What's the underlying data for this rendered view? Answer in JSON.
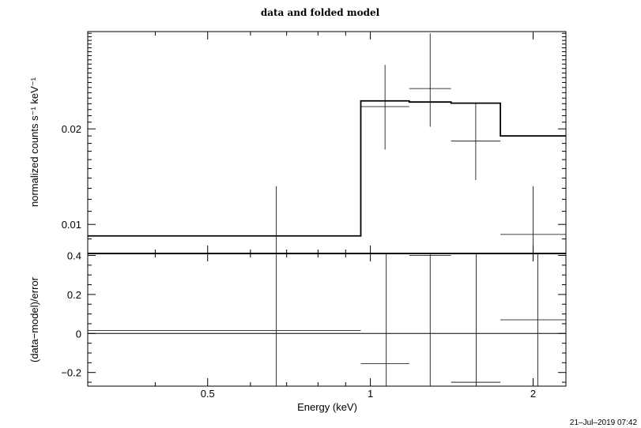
{
  "chart_data": [
    {
      "type": "line",
      "title": "data and folded model",
      "ylabel": "normalized counts s⁻¹ keV⁻¹",
      "xlabel": "",
      "xscale": "log",
      "yscale": "log",
      "xlim": [
        0.3,
        2.3
      ],
      "ylim": [
        0.0081,
        0.0405
      ],
      "yticks": [
        0.01,
        0.02
      ],
      "ytick_labels": [
        "0.01",
        "0.02"
      ],
      "series": [
        {
          "style": "crosses",
          "bins": [
            {
              "xlo": 0.3,
              "xhi": 0.96,
              "y": null
            },
            {
              "xlo": 0.96,
              "xhi": 1.18,
              "y": 0.0235,
              "ylo": 0.0172,
              "yhi": 0.0318
            },
            {
              "xlo": 1.18,
              "xhi": 1.41,
              "y": 0.0268,
              "ylo": 0.0203,
              "yhi": 0.04
            },
            {
              "xlo": 1.41,
              "xhi": 1.74,
              "y": 0.0183,
              "ylo": 0.0138,
              "yhi": 0.024
            },
            {
              "xlo": 1.74,
              "xhi": 2.3,
              "y": 0.0093,
              "ylo": 0.0081,
              "yhi": 0.0132
            }
          ],
          "extra_error_bar": {
            "x": 0.67,
            "ylo": 0.0081,
            "yhi": 0.0132
          }
        },
        {
          "style": "step",
          "edges": [
            0.3,
            0.96,
            1.18,
            1.41,
            1.74,
            2.3
          ],
          "values": [
            0.0092,
            0.0245,
            0.0243,
            0.0241,
            0.019,
            0.0092
          ]
        }
      ]
    },
    {
      "type": "line",
      "ylabel": "(data−model)/error",
      "xlabel": "Energy (keV)",
      "xscale": "log",
      "xlim": [
        0.3,
        2.3
      ],
      "ylim": [
        -0.27,
        0.41
      ],
      "yticks": [
        -0.2,
        0,
        0.2,
        0.4
      ],
      "ytick_labels": [
        "−0.2",
        "0",
        "0.2",
        "0.4"
      ],
      "xticks": [
        0.5,
        1,
        2
      ],
      "xtick_labels": [
        "0.5",
        "1",
        "2"
      ],
      "series": [
        {
          "style": "crosses",
          "bins": [
            {
              "xlo": 0.3,
              "xhi": 0.96,
              "y": 0.015
            },
            {
              "xlo": 0.96,
              "xhi": 1.18,
              "y": -0.155
            },
            {
              "xlo": 1.18,
              "xhi": 1.41,
              "y": 0.4
            },
            {
              "xlo": 1.41,
              "xhi": 1.74,
              "y": -0.25
            },
            {
              "xlo": 1.74,
              "xhi": 2.3,
              "y": 0.07
            }
          ],
          "error_bar_xs": [
            0.67,
            1.07,
            1.29,
            1.57,
            2.04
          ]
        },
        {
          "style": "zero-line",
          "y": 0
        }
      ]
    }
  ],
  "timestamp": "21–Jul–2019 07:42",
  "colors": {
    "ink": "#000000",
    "background": "#ffffff"
  }
}
